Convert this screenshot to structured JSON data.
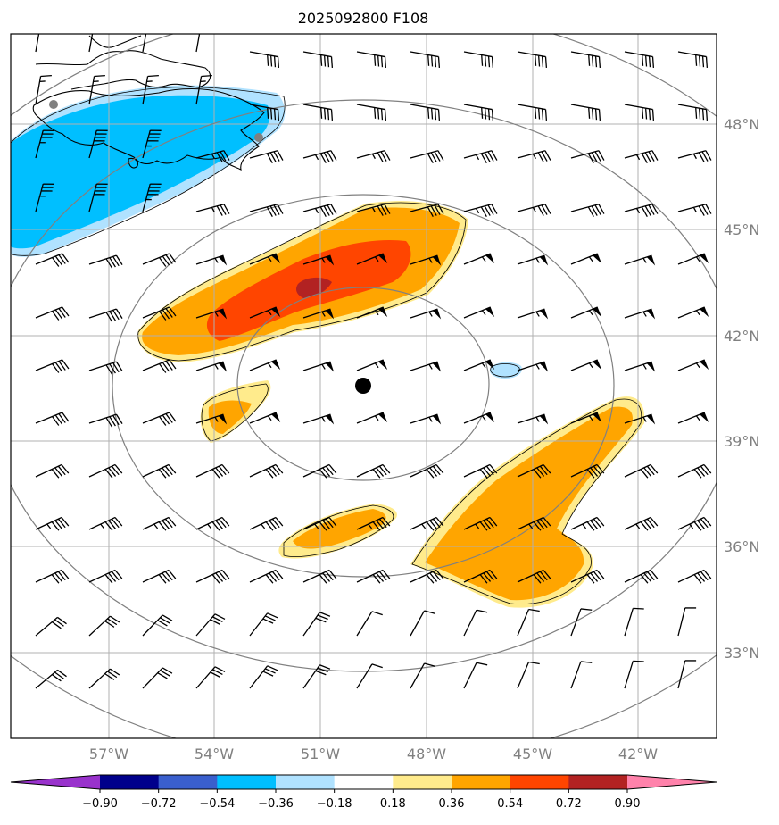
{
  "chart_data": {
    "type": "map",
    "title": "2025092800 F108",
    "lon_ticks": [
      "57°W",
      "54°W",
      "51°W",
      "48°W",
      "45°W",
      "42°W"
    ],
    "lat_ticks": [
      "48°N",
      "45°N",
      "42°N",
      "39°N",
      "36°N",
      "33°N"
    ],
    "lon_values": [
      -57,
      -54,
      -51,
      -48,
      -45,
      -42
    ],
    "lat_values": [
      48,
      45,
      42,
      39,
      36,
      33
    ],
    "center_marker": {
      "lon": -49.8,
      "lat": 40.6
    },
    "grid": true,
    "colorbar": {
      "orientation": "horizontal",
      "extend": "both",
      "tick_labels": [
        "−0.90",
        "−0.72",
        "−0.54",
        "−0.36",
        "−0.18",
        "0.18",
        "0.36",
        "0.54",
        "0.72",
        "0.90"
      ],
      "bounds": [
        -0.9,
        -0.72,
        -0.54,
        -0.36,
        -0.18,
        0.18,
        0.36,
        0.54,
        0.72,
        0.9
      ],
      "colors": [
        "#9932cc",
        "#00008b",
        "#3a5fcd",
        "#00bfff",
        "#b0e2ff",
        "#ffffff",
        "#ffeb8c",
        "#ffa500",
        "#ff4500",
        "#b22222",
        "#ff82ab"
      ]
    },
    "shaded_regions": [
      {
        "sign": "negative",
        "peak_level": -0.54,
        "area": "northwest near Newfoundland"
      },
      {
        "sign": "negative",
        "peak_level": -0.18,
        "area": "small patch near 45.5°W 41°N"
      },
      {
        "sign": "positive",
        "peak_level": 0.9,
        "area": "elongated band 43–44°N, 56–47°W"
      },
      {
        "sign": "positive",
        "peak_level": 0.54,
        "area": "southeast band 35–40°N, 48–42°W"
      },
      {
        "sign": "positive",
        "peak_level": 0.54,
        "area": "small band near 36.5°N 51–48°W"
      },
      {
        "sign": "positive",
        "peak_level": 0.54,
        "area": "small patch near 40°N 54°W"
      }
    ]
  },
  "colors": {
    "grid": "#b0b0b0",
    "range_ring": "#808080",
    "tick_label": "#808080"
  }
}
